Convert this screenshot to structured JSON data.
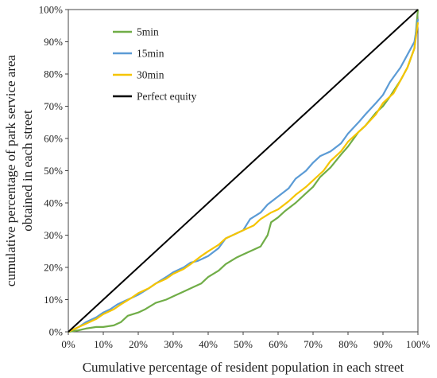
{
  "chart_data": {
    "type": "line",
    "xlabel": "Cumulative percentage of resident population in each street",
    "ylabel_lines": [
      "cumulative percentage of park service area",
      "obtained in each street"
    ],
    "xlim": [
      0,
      100
    ],
    "ylim": [
      0,
      100
    ],
    "x_ticks": [
      "0%",
      "10%",
      "20%",
      "30%",
      "40%",
      "50%",
      "60%",
      "70%",
      "80%",
      "90%",
      "100%"
    ],
    "y_ticks": [
      "0%",
      "10%",
      "20%",
      "30%",
      "40%",
      "50%",
      "60%",
      "70%",
      "80%",
      "90%",
      "100%"
    ],
    "grid": false,
    "legend_position": "top-left",
    "series": [
      {
        "name": "5min",
        "color": "#70ad47",
        "x": [
          0,
          3,
          5,
          8,
          10,
          13,
          15,
          17,
          20,
          22,
          25,
          28,
          30,
          33,
          36,
          38,
          40,
          43,
          45,
          48,
          50,
          52,
          55,
          57,
          58,
          60,
          62,
          65,
          68,
          70,
          72,
          75,
          78,
          80,
          83,
          85,
          88,
          90,
          92,
          95,
          97,
          99,
          100
        ],
        "y": [
          0,
          0.5,
          1,
          1.5,
          1.5,
          2,
          3,
          5,
          6,
          7,
          9,
          10,
          11,
          12.5,
          14,
          15,
          17,
          19,
          21,
          23,
          24,
          25,
          26.5,
          30,
          34,
          35.5,
          37.5,
          40,
          43,
          45,
          48,
          51,
          55,
          57.5,
          62,
          64,
          68,
          70,
          73,
          78,
          82,
          88,
          100
        ]
      },
      {
        "name": "15min",
        "color": "#5b9bd5",
        "x": [
          0,
          3,
          5,
          8,
          10,
          12,
          14,
          16,
          18,
          20,
          23,
          25,
          28,
          30,
          33,
          35,
          37,
          40,
          43,
          45,
          48,
          50,
          52,
          55,
          57,
          60,
          63,
          65,
          68,
          70,
          72,
          75,
          78,
          80,
          83,
          85,
          88,
          90,
          92,
          95,
          97,
          99,
          100
        ],
        "y": [
          0,
          1.5,
          3,
          4.5,
          6,
          7,
          8.5,
          9.5,
          10.5,
          11.5,
          13.5,
          15,
          17,
          18.5,
          20,
          21.5,
          22,
          23.5,
          26,
          29,
          30.5,
          31.5,
          35,
          37,
          39.5,
          42,
          44.5,
          47.5,
          50,
          52.5,
          54.5,
          56,
          58.5,
          61.5,
          65,
          67.5,
          71,
          73.5,
          77.5,
          82,
          86,
          90,
          97
        ]
      },
      {
        "name": "30min",
        "color": "#f5c400",
        "x": [
          0,
          3,
          5,
          8,
          10,
          13,
          15,
          18,
          20,
          23,
          25,
          28,
          30,
          33,
          35,
          38,
          40,
          43,
          45,
          48,
          50,
          53,
          55,
          58,
          60,
          63,
          65,
          68,
          70,
          73,
          75,
          78,
          80,
          83,
          85,
          88,
          90,
          93,
          95,
          97,
          99,
          100
        ],
        "y": [
          0,
          1.5,
          2.5,
          4,
          5.5,
          7,
          8.5,
          10.5,
          12,
          13.5,
          15,
          16.5,
          18,
          19.5,
          21,
          23.5,
          25,
          27,
          29,
          30.5,
          31.5,
          33,
          35,
          37,
          38,
          40.5,
          42.5,
          45,
          47,
          50,
          53,
          56,
          59,
          62,
          64,
          67.5,
          71,
          74,
          78,
          82,
          88,
          96
        ]
      },
      {
        "name": "Perfect equity",
        "color": "#000000",
        "x": [
          0,
          100
        ],
        "y": [
          0,
          100
        ]
      }
    ]
  }
}
